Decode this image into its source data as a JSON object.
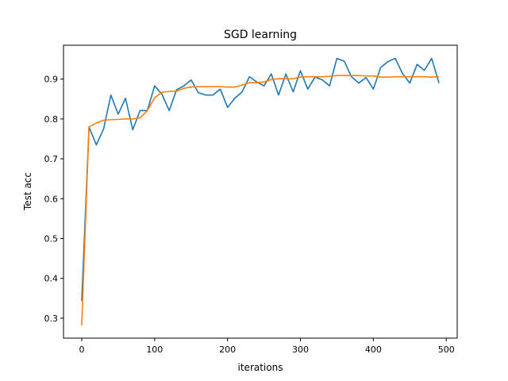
{
  "chart_data": {
    "type": "line",
    "title": "SGD learning",
    "xlabel": "iterations",
    "ylabel": "Test acc",
    "xlim": [
      -25,
      515
    ],
    "ylim": [
      0.25,
      0.985
    ],
    "xticks": [
      0,
      100,
      200,
      300,
      400,
      500
    ],
    "yticks": [
      0.3,
      0.4,
      0.5,
      0.6,
      0.7,
      0.8,
      0.9
    ],
    "grid": false,
    "legend": false,
    "x": [
      0,
      10,
      20,
      30,
      40,
      50,
      60,
      70,
      80,
      90,
      100,
      110,
      120,
      130,
      140,
      150,
      160,
      170,
      180,
      190,
      200,
      210,
      220,
      230,
      240,
      250,
      260,
      270,
      280,
      290,
      300,
      310,
      320,
      330,
      340,
      350,
      360,
      370,
      380,
      390,
      400,
      410,
      420,
      430,
      440,
      450,
      460,
      470,
      480,
      490
    ],
    "series": [
      {
        "color": "#1f77b4",
        "values": [
          0.343,
          0.78,
          0.735,
          0.775,
          0.86,
          0.812,
          0.852,
          0.773,
          0.821,
          0.821,
          0.883,
          0.862,
          0.821,
          0.873,
          0.883,
          0.898,
          0.866,
          0.86,
          0.86,
          0.875,
          0.829,
          0.852,
          0.868,
          0.906,
          0.893,
          0.883,
          0.913,
          0.86,
          0.913,
          0.868,
          0.921,
          0.875,
          0.905,
          0.898,
          0.883,
          0.952,
          0.945,
          0.906,
          0.89,
          0.904,
          0.875,
          0.929,
          0.944,
          0.952,
          0.914,
          0.89,
          0.937,
          0.922,
          0.952,
          0.89
        ]
      },
      {
        "color": "#ff7f0e",
        "values": [
          0.282,
          0.78,
          0.79,
          0.797,
          0.798,
          0.799,
          0.8,
          0.8,
          0.803,
          0.821,
          0.853,
          0.867,
          0.869,
          0.87,
          0.877,
          0.88,
          0.881,
          0.881,
          0.881,
          0.881,
          0.88,
          0.88,
          0.885,
          0.891,
          0.891,
          0.893,
          0.899,
          0.901,
          0.901,
          0.901,
          0.905,
          0.906,
          0.906,
          0.906,
          0.907,
          0.909,
          0.909,
          0.909,
          0.909,
          0.908,
          0.908,
          0.905,
          0.905,
          0.906,
          0.906,
          0.906,
          0.906,
          0.906,
          0.905,
          0.906
        ]
      }
    ]
  }
}
